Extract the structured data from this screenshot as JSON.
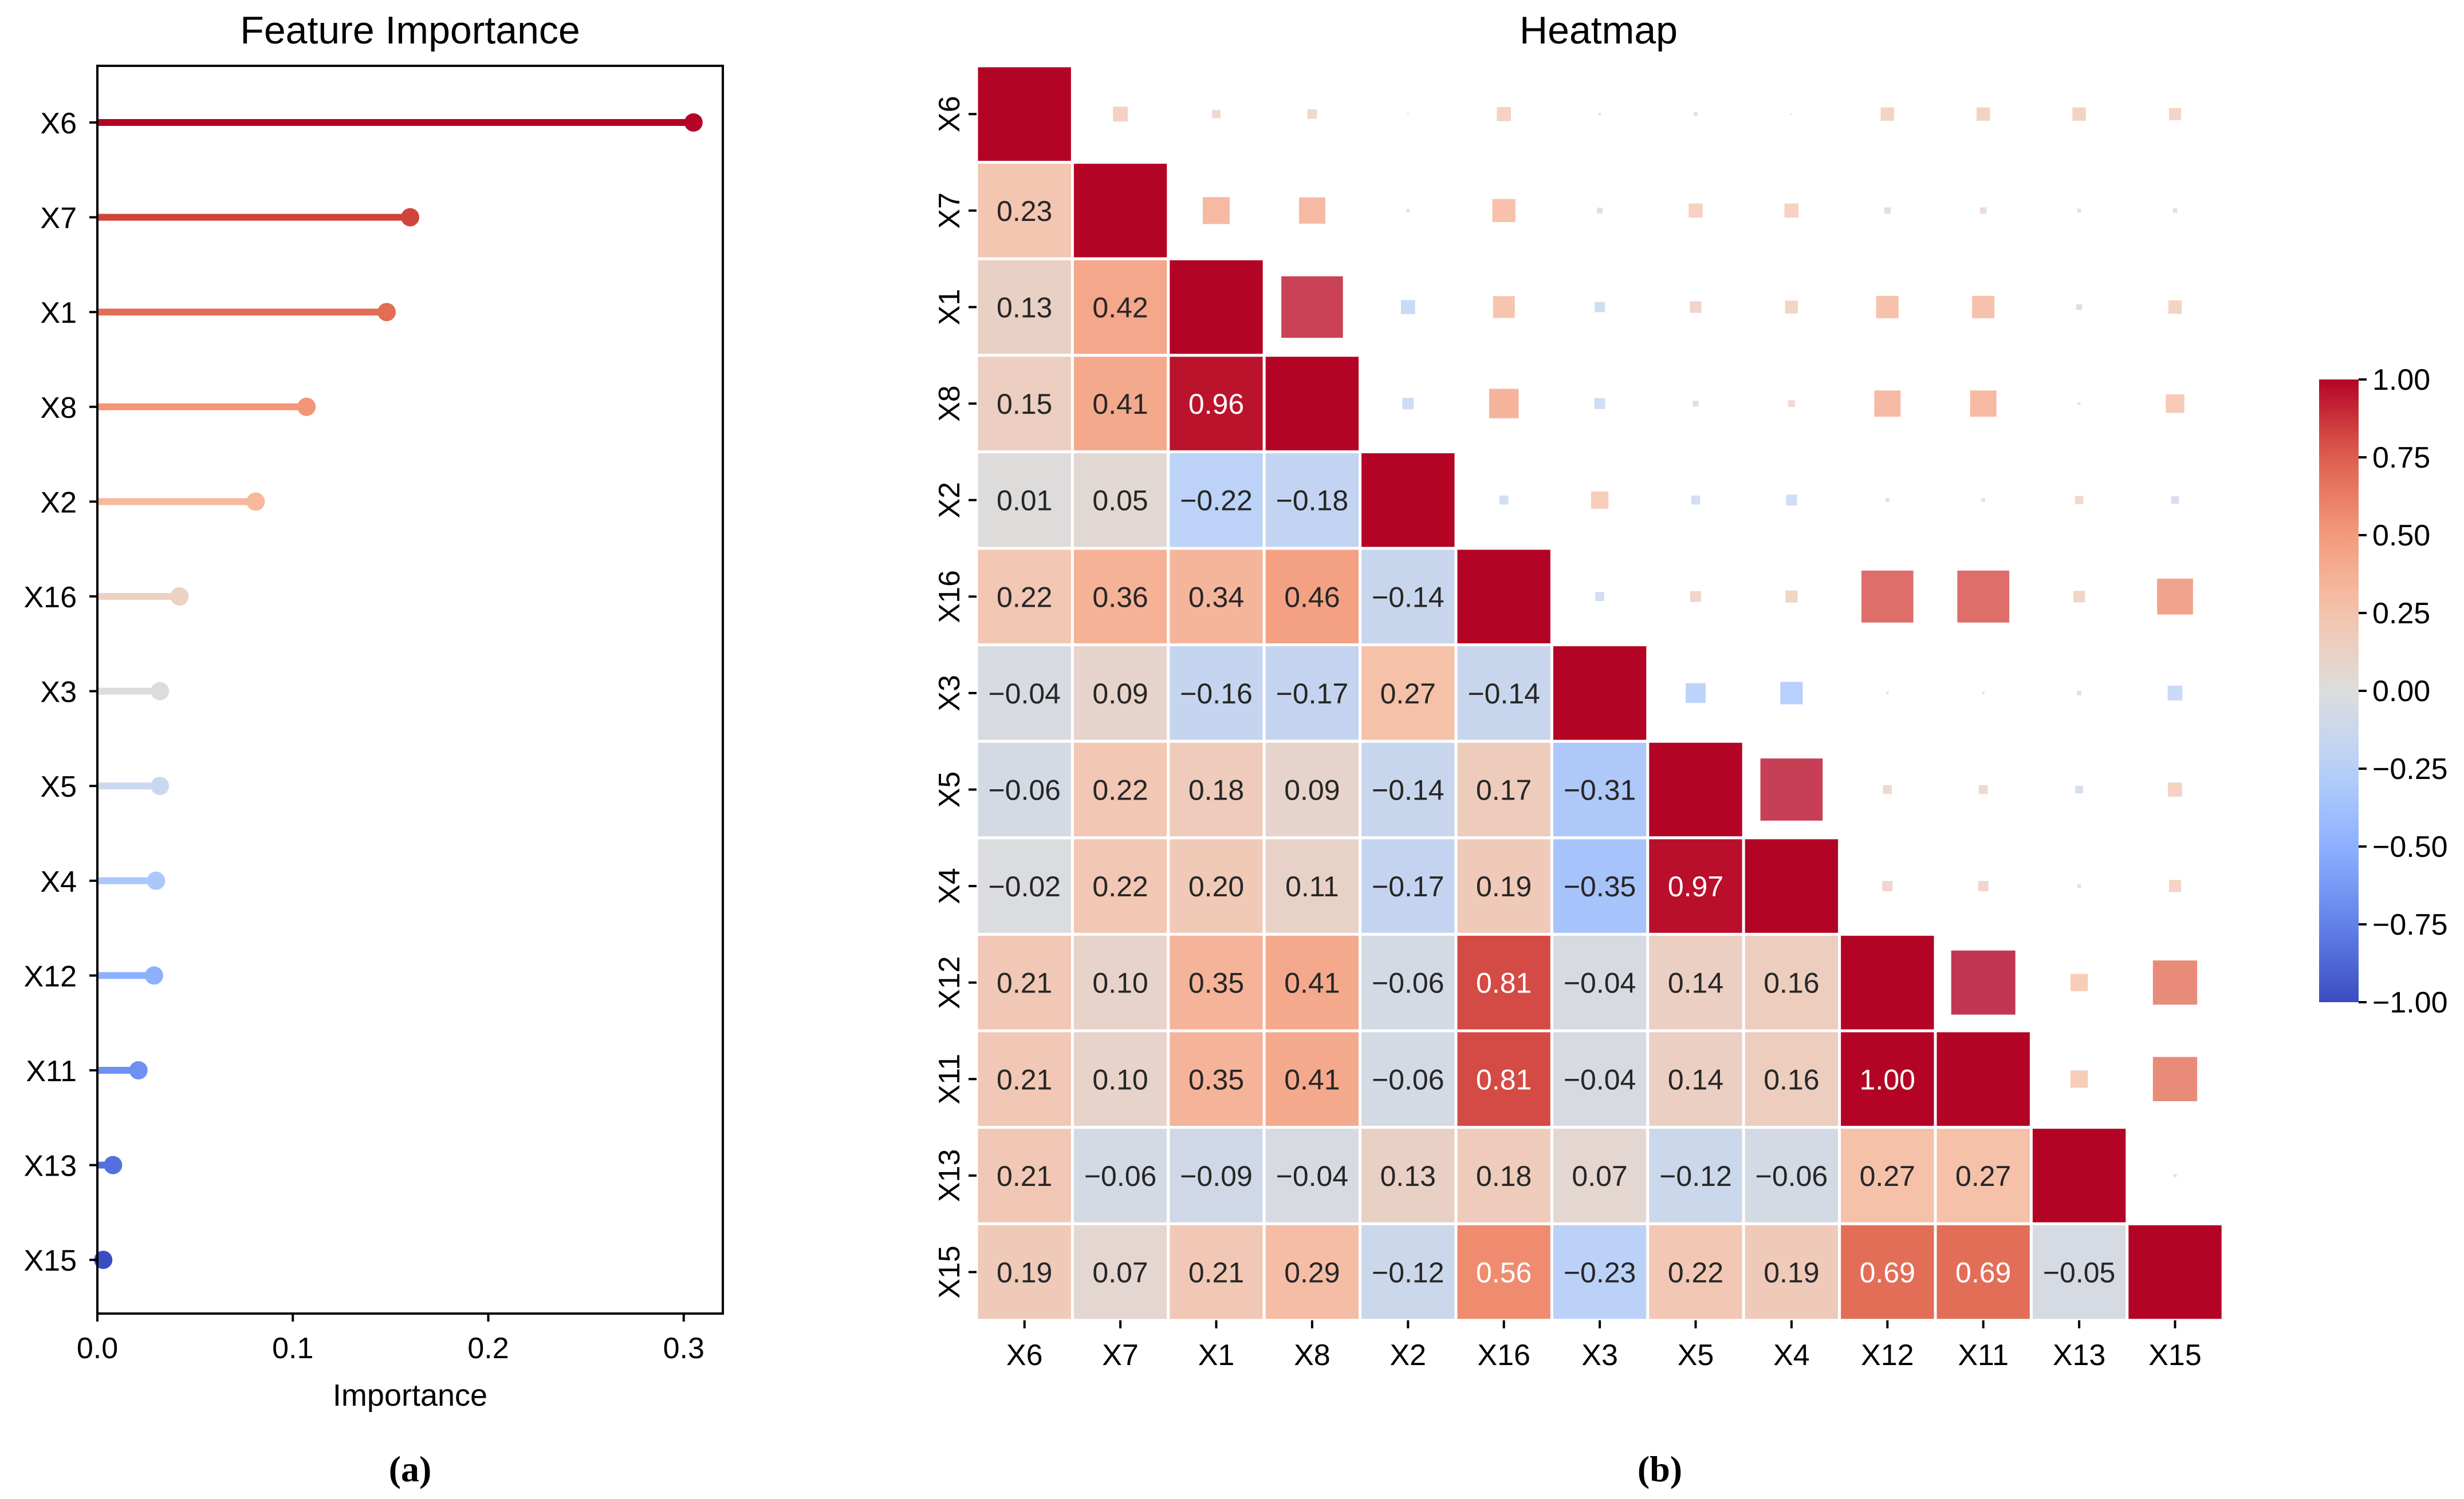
{
  "chart_data": [
    {
      "type": "lollipop",
      "orientation": "horizontal",
      "title": "Feature Importance",
      "xlabel": "Importance",
      "ylabel": "",
      "xlim": [
        0,
        0.32
      ],
      "xticks": [
        0.0,
        0.1,
        0.2,
        0.3
      ],
      "xtick_labels": [
        "0.0",
        "0.1",
        "0.2",
        "0.3"
      ],
      "categories": [
        "X6",
        "X7",
        "X1",
        "X8",
        "X2",
        "X16",
        "X3",
        "X5",
        "X4",
        "X12",
        "X11",
        "X13",
        "X15"
      ],
      "values": [
        0.305,
        0.16,
        0.148,
        0.107,
        0.081,
        0.042,
        0.032,
        0.032,
        0.03,
        0.029,
        0.021,
        0.008,
        0.003
      ],
      "colors": [
        "#b40426",
        "#cf453c",
        "#e36c55",
        "#f39577",
        "#f7b89c",
        "#edd1c2",
        "#dddcdc",
        "#cad8ef",
        "#abc8fd",
        "#8db0fe",
        "#6e90f2",
        "#5470de",
        "#3b4cc0"
      ],
      "caption": "(a)"
    },
    {
      "type": "heatmap",
      "title": "Heatmap",
      "variables": [
        "X6",
        "X7",
        "X1",
        "X8",
        "X2",
        "X16",
        "X3",
        "X5",
        "X4",
        "X12",
        "X11",
        "X13",
        "X15"
      ],
      "matrix": [
        [
          1.0,
          0.23,
          0.13,
          0.15,
          0.01,
          0.22,
          -0.04,
          -0.06,
          -0.02,
          0.21,
          0.21,
          0.21,
          0.19
        ],
        [
          0.23,
          1.0,
          0.42,
          0.41,
          0.05,
          0.36,
          0.09,
          0.22,
          0.22,
          0.1,
          0.1,
          -0.06,
          0.07
        ],
        [
          0.13,
          0.42,
          1.0,
          0.96,
          -0.22,
          0.34,
          -0.16,
          0.18,
          0.2,
          0.35,
          0.35,
          -0.09,
          0.21
        ],
        [
          0.15,
          0.41,
          0.96,
          1.0,
          -0.18,
          0.46,
          -0.17,
          0.09,
          0.11,
          0.41,
          0.41,
          -0.04,
          0.29
        ],
        [
          0.01,
          0.05,
          -0.22,
          -0.18,
          1.0,
          -0.14,
          0.27,
          -0.14,
          -0.17,
          -0.06,
          -0.06,
          0.13,
          -0.12
        ],
        [
          0.22,
          0.36,
          0.34,
          0.46,
          -0.14,
          1.0,
          -0.14,
          0.17,
          0.19,
          0.81,
          0.81,
          0.18,
          0.56
        ],
        [
          -0.04,
          0.09,
          -0.16,
          -0.17,
          0.27,
          -0.14,
          1.0,
          -0.31,
          -0.35,
          -0.04,
          -0.04,
          0.07,
          -0.23
        ],
        [
          -0.06,
          0.22,
          0.18,
          0.09,
          -0.14,
          0.17,
          -0.31,
          1.0,
          0.97,
          0.14,
          0.14,
          -0.12,
          0.22
        ],
        [
          -0.02,
          0.22,
          0.2,
          0.11,
          -0.17,
          0.19,
          -0.35,
          0.97,
          1.0,
          0.16,
          0.16,
          -0.06,
          0.19
        ],
        [
          0.21,
          0.1,
          0.35,
          0.41,
          -0.06,
          0.81,
          -0.04,
          0.14,
          0.16,
          1.0,
          1.0,
          0.27,
          0.69
        ],
        [
          0.21,
          0.1,
          0.35,
          0.41,
          -0.06,
          0.81,
          -0.04,
          0.14,
          0.16,
          1.0,
          1.0,
          0.27,
          0.69
        ],
        [
          0.21,
          -0.06,
          -0.09,
          -0.04,
          0.13,
          0.18,
          0.07,
          -0.12,
          -0.06,
          0.27,
          0.27,
          1.0,
          -0.05
        ],
        [
          0.19,
          0.07,
          0.21,
          0.29,
          -0.12,
          0.56,
          -0.23,
          0.22,
          0.19,
          0.69,
          0.69,
          -0.05,
          1.0
        ]
      ],
      "lower_triangle": "numeric annotations (2 decimals)",
      "upper_triangle": "squares sized by |correlation|",
      "colormap": "coolwarm",
      "vmin": -1.0,
      "vmax": 1.0,
      "colorbar_ticks": [
        1.0,
        0.75,
        0.5,
        0.25,
        0.0,
        -0.25,
        -0.5,
        -0.75,
        -1.0
      ],
      "colorbar_tick_labels": [
        "1.00",
        "0.75",
        "0.50",
        "0.25",
        "0.00",
        "−0.25",
        "−0.50",
        "−0.75",
        "−1.00"
      ],
      "caption": "(b)"
    }
  ]
}
